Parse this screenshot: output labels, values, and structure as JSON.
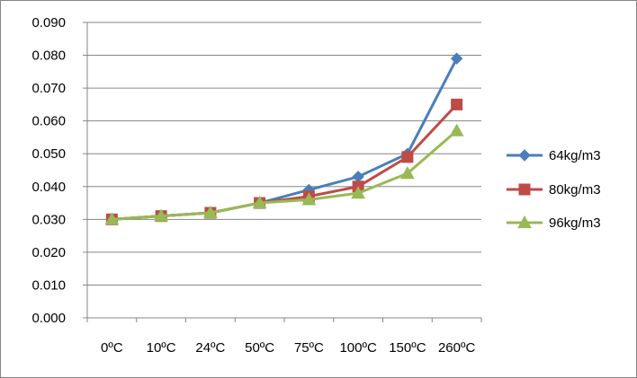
{
  "chart_data": {
    "type": "line",
    "title": "",
    "xlabel": "",
    "ylabel": "",
    "categories": [
      "0ºC",
      "10ºC",
      "24ºC",
      "50ºC",
      "75ºC",
      "100ºC",
      "150ºC",
      "260ºC"
    ],
    "ylim": [
      0,
      0.09
    ],
    "yticks": [
      "0.000",
      "0.010",
      "0.020",
      "0.030",
      "0.040",
      "0.050",
      "0.060",
      "0.070",
      "0.080",
      "0.090"
    ],
    "grid": "horizontal",
    "legend_position": "right",
    "series": [
      {
        "name": "64kg/m3",
        "color": "#4A7EBB",
        "marker": "diamond",
        "values": [
          0.03,
          0.031,
          0.032,
          0.035,
          0.039,
          0.043,
          0.05,
          0.079
        ]
      },
      {
        "name": "80kg/m3",
        "color": "#BE4B48",
        "marker": "square",
        "values": [
          0.03,
          0.031,
          0.032,
          0.035,
          0.037,
          0.04,
          0.049,
          0.065
        ]
      },
      {
        "name": "96kg/m3",
        "color": "#98B954",
        "marker": "triangle",
        "values": [
          0.03,
          0.031,
          0.032,
          0.035,
          0.036,
          0.038,
          0.044,
          0.057
        ]
      }
    ]
  }
}
